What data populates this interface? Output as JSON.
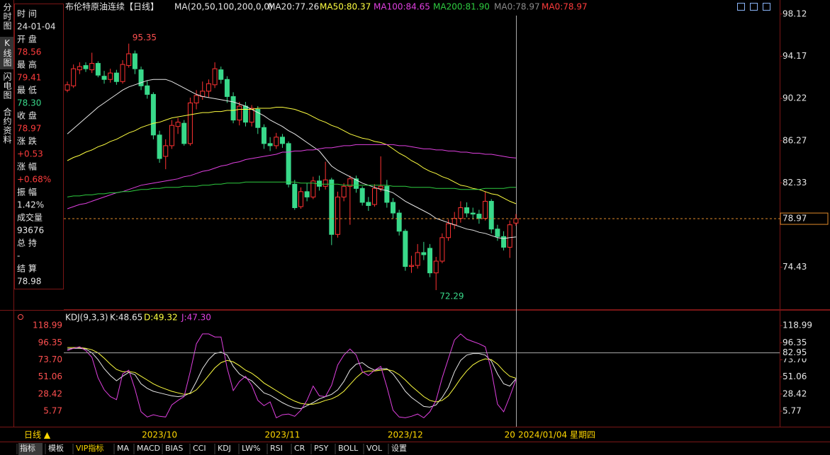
{
  "ui": {
    "side_tabs": [
      "分时图",
      "K线图",
      "闪电图",
      "合约资料"
    ],
    "info": [
      {
        "label": "时 间",
        "value": "24-01-04",
        "color": "#e6e6e6"
      },
      {
        "label": "开 盘",
        "value": "78.56",
        "color": "#ff3c3c"
      },
      {
        "label": "最 高",
        "value": "79.41",
        "color": "#ff3c3c"
      },
      {
        "label": "最 低",
        "value": "78.30",
        "color": "#39d98a"
      },
      {
        "label": "收 盘",
        "value": "78.97",
        "color": "#ff3c3c"
      },
      {
        "label": "涨 跌",
        "value": "+0.53",
        "color": "#ff3c3c"
      },
      {
        "label": "涨 幅",
        "value": "+0.68%",
        "color": "#ff3c3c"
      },
      {
        "label": "振 幅",
        "value": "1.42%",
        "color": "#e6e6e6"
      },
      {
        "label": "成交量",
        "value": "93676",
        "color": "#e6e6e6"
      },
      {
        "label": "总 持",
        "value": "-",
        "color": "#e6e6e6"
      },
      {
        "label": "结 算",
        "value": "78.98",
        "color": "#e6e6e6"
      }
    ],
    "period": "日线 ▲",
    "cursor_date": "2024/01/04 星期四",
    "toolbar": [
      "指标",
      "模板",
      "VIP指标",
      "MA",
      "MACD",
      "BIAS",
      "CCI",
      "KDJ",
      "LW%",
      "RSI",
      "CR",
      "PSY",
      "BOLL",
      "VOL",
      "设置"
    ]
  },
  "chart_data": [
    {
      "type": "candlestick",
      "title": "布伦特原油连续【日线】",
      "indicator": "MA(20,50,100,200,0,0)",
      "categories": [
        null,
        null,
        null,
        null,
        null,
        null,
        null,
        null,
        null,
        null,
        null,
        null,
        null,
        null,
        null,
        "2023/10",
        null,
        null,
        null,
        null,
        null,
        null,
        null,
        null,
        null,
        null,
        null,
        null,
        null,
        null,
        null,
        null,
        null,
        null,
        null,
        "2023/11",
        null,
        null,
        null,
        null,
        null,
        null,
        null,
        null,
        null,
        null,
        null,
        null,
        null,
        null,
        null,
        null,
        null,
        null,
        null,
        "2023/12",
        null,
        null,
        null,
        null,
        null,
        null,
        null,
        null,
        null,
        null,
        null,
        null,
        null,
        null,
        null,
        null,
        "20",
        null
      ],
      "open": [
        91.0,
        91.4,
        92.9,
        93.3,
        92.9,
        93.5,
        92.3,
        92.0,
        92.6,
        91.8,
        93.3,
        94.4,
        92.9,
        91.4,
        90.6,
        86.8,
        84.8,
        85.8,
        87.6,
        87.9,
        86.0,
        89.8,
        90.4,
        90.9,
        91.5,
        92.9,
        92.0,
        90.4,
        88.2,
        89.5,
        88.0,
        89.2,
        87.5,
        86.0,
        85.8,
        86.6,
        86.0,
        82.2,
        80.1,
        81.5,
        81.0,
        82.5,
        82.0,
        82.6,
        77.5,
        81.0,
        82.0,
        82.7,
        81.8,
        80.5,
        80.3,
        81.8,
        82.0,
        80.5,
        79.5,
        77.8,
        74.5,
        74.6,
        75.8,
        76.2,
        73.9,
        75.0,
        77.2,
        78.4,
        79.0,
        80.0,
        79.5,
        79.4,
        79.0,
        80.6,
        78.0,
        77.3,
        76.3,
        78.56
      ],
      "high": [
        91.8,
        93.4,
        93.6,
        93.6,
        94.5,
        93.7,
        92.8,
        93.0,
        92.9,
        93.8,
        95.35,
        94.7,
        93.2,
        91.9,
        90.8,
        87.2,
        86.4,
        88.2,
        88.4,
        88.2,
        90.3,
        91.0,
        91.8,
        92.0,
        93.6,
        93.2,
        92.3,
        90.8,
        89.9,
        89.9,
        89.6,
        89.5,
        87.8,
        86.6,
        87.0,
        86.9,
        86.2,
        82.6,
        81.9,
        82.3,
        82.9,
        83.0,
        84.3,
        82.8,
        81.5,
        82.3,
        83.0,
        83.0,
        82.0,
        81.0,
        82.2,
        84.8,
        82.6,
        80.9,
        79.8,
        78.0,
        75.5,
        76.6,
        76.8,
        76.6,
        75.4,
        77.6,
        78.9,
        79.6,
        80.6,
        80.5,
        80.0,
        79.8,
        81.5,
        80.8,
        78.4,
        77.8,
        78.8,
        79.41
      ],
      "low": [
        90.8,
        91.2,
        92.5,
        92.7,
        92.6,
        92.2,
        91.6,
        91.7,
        91.5,
        91.6,
        93.1,
        92.5,
        91.0,
        90.2,
        86.4,
        84.2,
        83.6,
        85.5,
        86.9,
        85.8,
        85.8,
        89.2,
        90.1,
        90.3,
        91.2,
        91.6,
        89.8,
        87.9,
        87.7,
        87.6,
        87.6,
        86.9,
        85.5,
        85.3,
        85.5,
        85.6,
        81.9,
        79.8,
        79.9,
        80.6,
        80.8,
        81.6,
        81.7,
        76.5,
        77.2,
        80.6,
        78.4,
        81.4,
        80.2,
        79.7,
        80.1,
        81.5,
        80.0,
        79.0,
        77.4,
        74.1,
        73.9,
        74.3,
        75.1,
        73.5,
        72.29,
        74.8,
        76.9,
        78.0,
        78.6,
        79.1,
        78.9,
        78.5,
        78.8,
        77.6,
        76.9,
        76.0,
        75.3,
        78.3
      ],
      "close": [
        91.5,
        93.0,
        93.2,
        93.0,
        93.5,
        92.4,
        92.0,
        92.6,
        91.8,
        93.4,
        94.4,
        93.0,
        91.4,
        90.6,
        86.8,
        84.6,
        85.8,
        87.7,
        88.0,
        86.0,
        89.8,
        90.5,
        90.9,
        91.6,
        93.0,
        92.0,
        90.4,
        88.2,
        89.5,
        88.0,
        89.3,
        87.5,
        86.0,
        85.8,
        86.6,
        86.0,
        82.2,
        80.0,
        81.5,
        81.0,
        82.5,
        82.0,
        82.6,
        77.5,
        81.0,
        82.0,
        82.7,
        81.8,
        80.5,
        80.2,
        81.8,
        82.0,
        80.5,
        79.5,
        77.8,
        74.5,
        74.6,
        75.8,
        75.6,
        73.9,
        75.0,
        77.2,
        78.5,
        79.0,
        80.0,
        79.5,
        79.4,
        79.0,
        80.6,
        78.0,
        77.3,
        76.3,
        78.4,
        78.97
      ],
      "up_color": "#ff3232",
      "down_color": "#39d98a",
      "series": [
        {
          "name": "MA20:77.26",
          "color": "#e8e8e8",
          "values": [
            86.9,
            87.4,
            87.9,
            88.4,
            88.9,
            89.4,
            89.8,
            90.2,
            90.6,
            91.0,
            91.3,
            91.5,
            91.7,
            91.9,
            92.0,
            92.0,
            92.0,
            91.8,
            91.5,
            91.2,
            90.9,
            90.6,
            90.4,
            90.3,
            90.2,
            90.1,
            90.0,
            89.9,
            89.7,
            89.5,
            89.2,
            88.9,
            88.6,
            88.2,
            87.9,
            87.6,
            87.2,
            86.9,
            86.5,
            86.1,
            85.7,
            85.3,
            84.6,
            83.9,
            83.5,
            83.2,
            82.9,
            82.6,
            82.3,
            82.1,
            81.9,
            81.7,
            81.6,
            81.4,
            81.0,
            80.6,
            80.3,
            80.0,
            79.7,
            79.4,
            79.0,
            78.8,
            78.6,
            78.4,
            78.2,
            78.0,
            77.9,
            77.7,
            77.6,
            77.4,
            77.2,
            77.1,
            77.2,
            77.26
          ]
        },
        {
          "name": "MA50:80.37",
          "color": "#ffff40",
          "values": [
            84.4,
            84.7,
            84.9,
            85.2,
            85.4,
            85.7,
            85.9,
            86.2,
            86.4,
            86.7,
            87.0,
            87.2,
            87.5,
            87.7,
            87.9,
            88.0,
            88.2,
            88.4,
            88.5,
            88.6,
            88.7,
            88.8,
            88.9,
            88.9,
            89.0,
            89.0,
            89.1,
            89.1,
            89.2,
            89.2,
            89.2,
            89.3,
            89.3,
            89.3,
            89.4,
            89.4,
            89.3,
            89.2,
            89.0,
            88.8,
            88.5,
            88.2,
            88.0,
            87.7,
            87.5,
            87.2,
            86.9,
            86.7,
            86.5,
            86.4,
            86.2,
            86.1,
            85.9,
            85.5,
            85.1,
            84.8,
            84.4,
            84.1,
            83.7,
            83.4,
            83.2,
            82.9,
            82.7,
            82.4,
            82.1,
            82.0,
            81.8,
            81.7,
            81.5,
            81.3,
            81.2,
            80.9,
            80.6,
            80.37
          ]
        },
        {
          "name": "MA100:84.65",
          "color": "#e040e0",
          "values": [
            79.9,
            80.1,
            80.3,
            80.4,
            80.6,
            80.8,
            81.0,
            81.2,
            81.4,
            81.5,
            81.7,
            81.9,
            82.1,
            82.2,
            82.3,
            82.4,
            82.5,
            82.6,
            82.7,
            82.9,
            83.0,
            83.2,
            83.4,
            83.5,
            83.7,
            83.9,
            84.0,
            84.2,
            84.3,
            84.5,
            84.6,
            84.7,
            84.8,
            84.9,
            85.0,
            85.2,
            85.2,
            85.3,
            85.3,
            85.4,
            85.4,
            85.5,
            85.6,
            85.6,
            85.7,
            85.8,
            85.8,
            85.9,
            85.9,
            85.9,
            85.9,
            85.9,
            85.9,
            85.9,
            85.8,
            85.8,
            85.7,
            85.6,
            85.5,
            85.5,
            85.4,
            85.4,
            85.3,
            85.3,
            85.2,
            85.2,
            85.1,
            85.1,
            85.0,
            85.0,
            84.9,
            84.8,
            84.7,
            84.65
          ]
        },
        {
          "name": "MA200:81.90",
          "color": "#2ecc40",
          "values": [
            81.0,
            81.1,
            81.1,
            81.2,
            81.2,
            81.3,
            81.3,
            81.4,
            81.4,
            81.5,
            81.5,
            81.6,
            81.7,
            81.7,
            81.8,
            81.8,
            81.9,
            81.9,
            81.9,
            82.0,
            82.0,
            82.0,
            82.1,
            82.1,
            82.2,
            82.2,
            82.3,
            82.3,
            82.3,
            82.4,
            82.4,
            82.4,
            82.4,
            82.4,
            82.4,
            82.4,
            82.4,
            82.4,
            82.3,
            82.3,
            82.3,
            82.2,
            82.2,
            82.2,
            82.2,
            82.1,
            82.1,
            82.1,
            82.1,
            82.1,
            82.1,
            82.1,
            82.1,
            82.0,
            82.0,
            82.0,
            81.9,
            81.9,
            81.9,
            81.9,
            81.8,
            81.8,
            81.8,
            81.8,
            81.7,
            81.7,
            81.7,
            81.7,
            81.8,
            81.8,
            81.8,
            81.8,
            81.9,
            81.9
          ]
        }
      ],
      "extra_labels": [
        {
          "text": "MA0:78.97",
          "color": "#8a8a8a"
        },
        {
          "text": "MA0:78.97",
          "color": "#ff3c3c"
        }
      ],
      "ylim": [
        70.5,
        99.1
      ],
      "yticks": [
        98.12,
        94.17,
        90.22,
        86.27,
        82.33,
        74.43
      ],
      "grid": false
    },
    {
      "type": "line",
      "title": "KDJ(9,3,3)",
      "series": [
        {
          "name": "K:48.65",
          "color": "#e8e8e8",
          "values": [
            88,
            89,
            89,
            88,
            83,
            74,
            62,
            53,
            46,
            52,
            57,
            54,
            42,
            36,
            32,
            30,
            28,
            26,
            25,
            26,
            30,
            45,
            62,
            74,
            82,
            84,
            80,
            65,
            55,
            50,
            46,
            38,
            30,
            27,
            22,
            17,
            13,
            10,
            9,
            13,
            17,
            22,
            25,
            28,
            34,
            45,
            60,
            68,
            70,
            64,
            60,
            62,
            62,
            55,
            44,
            32,
            24,
            18,
            12,
            11,
            14,
            24,
            37,
            58,
            73,
            80,
            82,
            82,
            80,
            72,
            55,
            42,
            39,
            48.65
          ]
        },
        {
          "name": "D:49.32",
          "color": "#ffff40",
          "values": [
            90,
            90,
            90,
            89,
            87,
            83,
            76,
            68,
            61,
            58,
            58,
            57,
            52,
            47,
            42,
            38,
            35,
            32,
            30,
            28,
            29,
            34,
            43,
            53,
            63,
            70,
            73,
            71,
            66,
            60,
            56,
            50,
            43,
            38,
            33,
            28,
            23,
            19,
            16,
            15,
            15,
            17,
            20,
            22,
            26,
            32,
            41,
            50,
            57,
            59,
            59,
            60,
            61,
            59,
            54,
            47,
            39,
            32,
            25,
            20,
            18,
            20,
            26,
            37,
            49,
            59,
            67,
            72,
            75,
            74,
            68,
            59,
            52,
            49.32
          ]
        },
        {
          "name": "J:47.30",
          "color": "#e040e0",
          "values": [
            86,
            89,
            91,
            86,
            77,
            50,
            34,
            25,
            21,
            55,
            60,
            35,
            5,
            -2,
            1,
            -1,
            -2,
            14,
            20,
            25,
            58,
            95,
            108,
            108,
            104,
            104,
            63,
            33,
            45,
            52,
            40,
            20,
            13,
            18,
            -3,
            1,
            2,
            -1,
            7,
            20,
            39,
            26,
            25,
            40,
            67,
            80,
            88,
            80,
            58,
            53,
            60,
            65,
            38,
            7,
            -2,
            -3,
            -1,
            2,
            -3,
            5,
            20,
            50,
            75,
            100,
            108,
            101,
            98,
            95,
            91,
            60,
            15,
            5,
            25,
            47.3
          ]
        }
      ],
      "cursor_value": 82.95,
      "ylim": [
        -12,
        136
      ],
      "yticks": [
        118.99,
        96.35,
        {
          "value": 73.7,
          "label": "73.70"
        },
        51.06,
        28.42,
        5.77
      ],
      "grid": false
    }
  ]
}
